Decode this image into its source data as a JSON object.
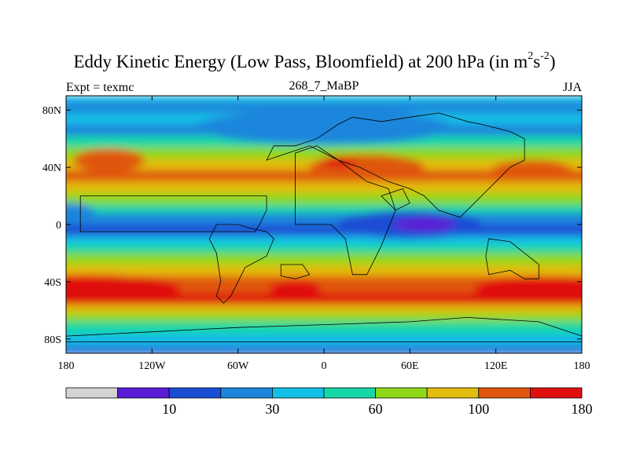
{
  "chart_data": {
    "type": "heatmap",
    "title": {
      "main": "Eddy Kinetic Energy (Low Pass, Bloomfield) at 200 hPa (in m",
      "sup1": "2",
      "mid": "s",
      "sup2": "-2",
      "end": ")"
    },
    "left_label": "Expt = texmc",
    "center_label": "268_7_MaBP",
    "right_label": "JJA",
    "x_ticks": [
      {
        "value": -180,
        "label": "180"
      },
      {
        "value": -120,
        "label": "120W"
      },
      {
        "value": -60,
        "label": "60W"
      },
      {
        "value": 0,
        "label": "0"
      },
      {
        "value": 60,
        "label": "60E"
      },
      {
        "value": 120,
        "label": "120E"
      },
      {
        "value": 180,
        "label": "180"
      }
    ],
    "y_ticks": [
      {
        "value": 80,
        "label": "80N"
      },
      {
        "value": 40,
        "label": "40N"
      },
      {
        "value": 0,
        "label": "0"
      },
      {
        "value": -40,
        "label": "40S"
      },
      {
        "value": -80,
        "label": "80S"
      }
    ],
    "xlim": [
      -180,
      180
    ],
    "ylim": [
      -90,
      90
    ],
    "colorbar": {
      "colors": [
        "#d3d3d3",
        "#5a1bd6",
        "#1a4ed4",
        "#1c86dc",
        "#12bfe6",
        "#16d8a6",
        "#8ed81a",
        "#e2bc0e",
        "#e0560c",
        "#e01010"
      ],
      "labels": [
        {
          "boundary": 2,
          "text": "10"
        },
        {
          "boundary": 4,
          "text": "30"
        },
        {
          "boundary": 6,
          "text": "60"
        },
        {
          "boundary": 8,
          "text": "100"
        },
        {
          "boundary": 10,
          "text": "180"
        }
      ]
    },
    "zonal_bands": [
      {
        "lat": 90,
        "level": 4
      },
      {
        "lat": 86,
        "level": 3
      },
      {
        "lat": 78,
        "level": 4
      },
      {
        "lat": 70,
        "level": 3
      },
      {
        "lat": 62,
        "level": 5
      },
      {
        "lat": 54,
        "level": 6
      },
      {
        "lat": 46,
        "level": 7
      },
      {
        "lat": 38,
        "level": 8
      },
      {
        "lat": 30,
        "level": 7
      },
      {
        "lat": 22,
        "level": 6
      },
      {
        "lat": 14,
        "level": 5
      },
      {
        "lat": 8,
        "level": 3
      },
      {
        "lat": 0,
        "level": 2
      },
      {
        "lat": -8,
        "level": 4
      },
      {
        "lat": -14,
        "level": 5
      },
      {
        "lat": -20,
        "level": 6
      },
      {
        "lat": -28,
        "level": 7
      },
      {
        "lat": -36,
        "level": 8
      },
      {
        "lat": -48,
        "level": 9
      },
      {
        "lat": -56,
        "level": 7
      },
      {
        "lat": -62,
        "level": 6
      },
      {
        "lat": -68,
        "level": 5
      },
      {
        "lat": -76,
        "level": 4
      },
      {
        "lat": -84,
        "level": 3
      },
      {
        "lat": -88,
        "level": 2
      }
    ],
    "blobs": [
      {
        "lon": -150,
        "lat": 45,
        "rx": 25,
        "ry": 8,
        "level": 8
      },
      {
        "lon": 30,
        "lat": 40,
        "rx": 40,
        "ry": 9,
        "level": 8
      },
      {
        "lon": 145,
        "lat": 38,
        "rx": 28,
        "ry": 7,
        "level": 8
      },
      {
        "lon": 10,
        "lat": 44,
        "rx": 12,
        "ry": 4,
        "level": 9
      },
      {
        "lon": 60,
        "lat": 0,
        "rx": 50,
        "ry": 10,
        "level": 2
      },
      {
        "lon": 70,
        "lat": 0,
        "rx": 22,
        "ry": 5,
        "level": 1
      },
      {
        "lon": -178,
        "lat": 8,
        "rx": 18,
        "ry": 7,
        "level": 3
      },
      {
        "lon": -165,
        "lat": -45,
        "rx": 65,
        "ry": 10,
        "level": 9
      },
      {
        "lon": 150,
        "lat": -45,
        "rx": 45,
        "ry": 9,
        "level": 9
      },
      {
        "lon": -20,
        "lat": -45,
        "rx": 18,
        "ry": 6,
        "level": 9
      },
      {
        "lon": 0,
        "lat": 68,
        "rx": 90,
        "ry": 12,
        "level": 3
      }
    ],
    "continents": [
      [
        [
          -170,
          20
        ],
        [
          -40,
          20
        ],
        [
          -40,
          10
        ],
        [
          -45,
          0
        ],
        [
          -48,
          -5
        ],
        [
          -170,
          -5
        ]
      ],
      [
        [
          -20,
          50
        ],
        [
          -20,
          0
        ],
        [
          5,
          0
        ],
        [
          15,
          -10
        ],
        [
          20,
          -35
        ],
        [
          30,
          -35
        ],
        [
          40,
          -15
        ],
        [
          50,
          10
        ],
        [
          45,
          25
        ],
        [
          30,
          30
        ],
        [
          10,
          45
        ],
        [
          -5,
          55
        ]
      ],
      [
        [
          -40,
          45
        ],
        [
          -35,
          55
        ],
        [
          -20,
          55
        ],
        [
          -5,
          60
        ],
        [
          10,
          70
        ],
        [
          20,
          75
        ],
        [
          40,
          72
        ],
        [
          60,
          75
        ],
        [
          80,
          78
        ],
        [
          90,
          75
        ],
        [
          100,
          72
        ],
        [
          110,
          70
        ],
        [
          130,
          65
        ],
        [
          140,
          60
        ],
        [
          140,
          45
        ],
        [
          130,
          40
        ],
        [
          120,
          30
        ],
        [
          110,
          20
        ],
        [
          100,
          10
        ],
        [
          95,
          5
        ],
        [
          80,
          10
        ],
        [
          70,
          20
        ],
        [
          60,
          25
        ],
        [
          45,
          30
        ],
        [
          35,
          35
        ],
        [
          25,
          40
        ],
        [
          10,
          45
        ],
        [
          0,
          50
        ],
        [
          -10,
          55
        ],
        [
          -25,
          50
        ]
      ],
      [
        [
          40,
          20
        ],
        [
          55,
          25
        ],
        [
          60,
          15
        ],
        [
          50,
          10
        ]
      ],
      [
        [
          115,
          -10
        ],
        [
          130,
          -12
        ],
        [
          140,
          -20
        ],
        [
          150,
          -28
        ],
        [
          150,
          -38
        ],
        [
          140,
          -38
        ],
        [
          130,
          -32
        ],
        [
          115,
          -35
        ],
        [
          113,
          -22
        ]
      ],
      [
        [
          -80,
          -10
        ],
        [
          -75,
          -20
        ],
        [
          -72,
          -40
        ],
        [
          -75,
          -50
        ],
        [
          -70,
          -55
        ],
        [
          -65,
          -50
        ],
        [
          -60,
          -40
        ],
        [
          -55,
          -30
        ],
        [
          -40,
          -22
        ],
        [
          -35,
          -10
        ],
        [
          -40,
          -5
        ],
        [
          -50,
          -3
        ],
        [
          -60,
          0
        ],
        [
          -75,
          0
        ]
      ],
      [
        [
          -180,
          -78
        ],
        [
          -120,
          -75
        ],
        [
          -60,
          -72
        ],
        [
          0,
          -70
        ],
        [
          60,
          -68
        ],
        [
          100,
          -65
        ],
        [
          150,
          -68
        ],
        [
          180,
          -78
        ],
        [
          180,
          -82
        ],
        [
          -180,
          -82
        ]
      ],
      [
        [
          -30,
          -28
        ],
        [
          -15,
          -28
        ],
        [
          -10,
          -35
        ],
        [
          -20,
          -38
        ],
        [
          -30,
          -36
        ]
      ]
    ]
  }
}
